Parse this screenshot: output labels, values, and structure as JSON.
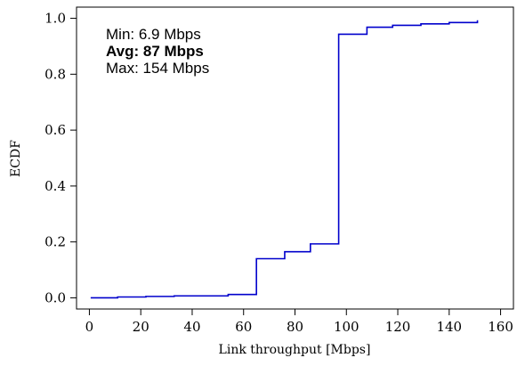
{
  "chart_data": {
    "type": "line",
    "xlabel": "Link throughput [Mbps]",
    "ylabel": "ECDF",
    "xlim": [
      -5,
      165
    ],
    "ylim": [
      -0.04,
      1.04
    ],
    "xticks": [
      0,
      20,
      40,
      60,
      80,
      100,
      120,
      140,
      160
    ],
    "yticks": [
      0.0,
      0.2,
      0.4,
      0.6,
      0.8,
      1.0
    ],
    "xtick_labels": [
      "0",
      "20",
      "40",
      "60",
      "80",
      "100",
      "120",
      "140",
      "160"
    ],
    "ytick_labels": [
      "0.0",
      "0.2",
      "0.4",
      "0.6",
      "0.8",
      "1.0"
    ],
    "grid": false,
    "series": [
      {
        "color": "#0000cc",
        "step": true,
        "x": [
          0.5,
          11,
          22,
          33,
          54,
          65,
          76,
          86,
          97,
          108,
          118,
          129,
          140,
          151
        ],
        "y": [
          0.0,
          0.003,
          0.005,
          0.007,
          0.012,
          0.14,
          0.165,
          0.193,
          0.943,
          0.968,
          0.975,
          0.98,
          0.985,
          0.993
        ]
      }
    ],
    "annotations": [
      {
        "text": "Min: 6.9 Mbps",
        "bold": false
      },
      {
        "text": "Avg: 87 Mbps",
        "bold": true
      },
      {
        "text": "Max: 154 Mbps",
        "bold": false
      }
    ]
  }
}
